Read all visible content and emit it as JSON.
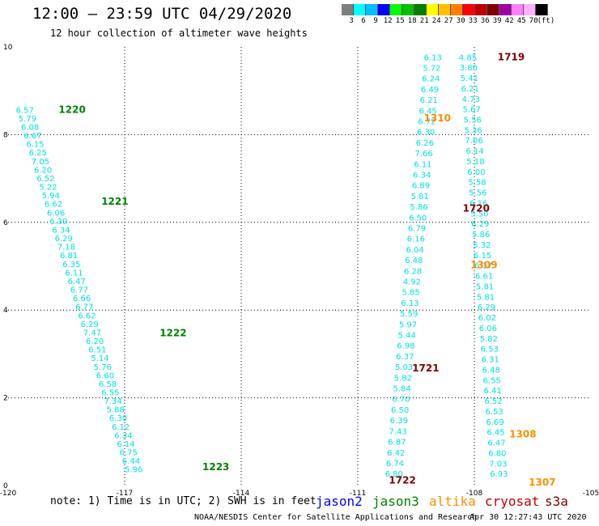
{
  "header": {
    "title": "12:00 — 23:59 UTC 04/29/2020",
    "subtitle": "12 hour collection of altimeter wave heights"
  },
  "legend": {
    "colors": [
      "#7f7f7f",
      "#00ffff",
      "#00bfff",
      "#0000ff",
      "#00ff00",
      "#00c000",
      "#008000",
      "#ffff00",
      "#ffc000",
      "#ff8000",
      "#ff0000",
      "#c00000",
      "#800000",
      "#a000a0",
      "#ff80ff",
      "#ffb0ff",
      "#000000"
    ],
    "labels": [
      "3",
      "6",
      "9",
      "12",
      "15",
      "18",
      "21",
      "24",
      "27",
      "30",
      "33",
      "36",
      "39",
      "42",
      "45",
      "70",
      "(ft)"
    ]
  },
  "chart_data": {
    "type": "scatter",
    "xlim": [
      -120,
      -105
    ],
    "ylim": [
      0,
      10
    ],
    "x_ticks": [
      "-120",
      "-117",
      "-114",
      "-111",
      "-108",
      "-105"
    ],
    "y_ticks": [
      "0",
      "2",
      "4",
      "6",
      "8",
      "10"
    ],
    "grid": true,
    "tracks": [
      {
        "id": "west",
        "color": "#00e0e0",
        "x0": -119.8,
        "y0": 8.5,
        "x1": -117.0,
        "y1": 0.3,
        "values": [
          "6.57",
          "5.79",
          "6.08",
          "6.67",
          "6.15",
          "6.25",
          "7.05",
          "6.20",
          "6.52",
          "5.22",
          "5.94",
          "6.62",
          "6.06",
          "6.39",
          "6.34",
          "6.29",
          "7.18",
          "6.81",
          "6.35",
          "6.11",
          "6.47",
          "6.77",
          "6.66",
          "6.77",
          "6.62",
          "6.29",
          "7.47",
          "6.20",
          "6.51",
          "5.14",
          "5.76",
          "6.60",
          "6.58",
          "6.55",
          "7.34",
          "5.88",
          "6.30",
          "6.12",
          "6.34",
          "6.14",
          "6.75",
          "6.44",
          "5.96"
        ]
      },
      {
        "id": "mid",
        "color": "#00e0e0",
        "x0": -109.3,
        "y0": 9.7,
        "x1": -110.3,
        "y1": 0.2,
        "values": [
          "6.13",
          "5.72",
          "6.24",
          "6.49",
          "6.21",
          "6.45",
          "6.72",
          "6.30",
          "6.26",
          "7.66",
          "6.11",
          "6.34",
          "6.89",
          "5.81",
          "5.86",
          "6.50",
          "6.79",
          "6.16",
          "6.04",
          "6.48",
          "6.28",
          "4.92",
          "5.85",
          "6.13",
          "5.59",
          "5.97",
          "5.44",
          "6.98",
          "6.37",
          "5.03",
          "5.82",
          "5.84",
          "6.70",
          "6.50",
          "6.39",
          "7.43",
          "6.87",
          "6.42",
          "6.74",
          "6.80"
        ]
      },
      {
        "id": "east",
        "color": "#00e0e0",
        "x0": -108.4,
        "y0": 9.7,
        "x1": -107.6,
        "y1": 0.2,
        "values": [
          "4.85",
          "3.80",
          "5.41",
          "6.21",
          "4.73",
          "5.67",
          "5.56",
          "5.36",
          "7.06",
          "6.14",
          "5.18",
          "6.00",
          "5.58",
          "5.56",
          "6.16",
          "5.50",
          "6.29",
          "5.86",
          "5.32",
          "6.15",
          "6.17",
          "6.61",
          "5.81",
          "5.81",
          "6.29",
          "6.02",
          "6.06",
          "5.82",
          "6.53",
          "6.31",
          "6.48",
          "6.55",
          "6.41",
          "6.52",
          "6.53",
          "6.69",
          "6.45",
          "6.47",
          "6.80",
          "7.03",
          "6.93"
        ]
      }
    ],
    "pass_labels": [
      {
        "text": "1220",
        "x": -118.7,
        "y": 8.5,
        "color": "#008000"
      },
      {
        "text": "1221",
        "x": -117.6,
        "y": 6.4,
        "color": "#008000"
      },
      {
        "text": "1222",
        "x": -116.1,
        "y": 3.4,
        "color": "#008000"
      },
      {
        "text": "1223",
        "x": -115.0,
        "y": 0.35,
        "color": "#008000"
      },
      {
        "text": "1719",
        "x": -107.4,
        "y": 9.7,
        "color": "#800000"
      },
      {
        "text": "1720",
        "x": -108.3,
        "y": 6.25,
        "color": "#800000"
      },
      {
        "text": "1721",
        "x": -109.6,
        "y": 2.6,
        "color": "#800000"
      },
      {
        "text": "1722",
        "x": -110.2,
        "y": 0.05,
        "color": "#800000"
      },
      {
        "text": "1310",
        "x": -109.3,
        "y": 8.3,
        "color": "#ff8c00"
      },
      {
        "text": "1309",
        "x": -108.1,
        "y": 4.95,
        "color": "#ff8c00"
      },
      {
        "text": "1308",
        "x": -107.1,
        "y": 1.1,
        "color": "#ff8c00"
      },
      {
        "text": "1307",
        "x": -106.6,
        "y": 0.0,
        "color": "#ff8c00"
      }
    ]
  },
  "footer": {
    "note": "note: 1) Time is in UTC; 2) SWH is in feet",
    "satellites": [
      {
        "name": "jason2",
        "color": "#0000ff"
      },
      {
        "name": "jason3",
        "color": "#008000"
      },
      {
        "name": "altika",
        "color": "#ff8c00"
      },
      {
        "name": "cryosat",
        "color": "#c00000"
      },
      {
        "name": "s3a",
        "color": "#800000"
      }
    ],
    "credit": "NOAA/NESDIS Center for Satellite Applications and Research",
    "timestamp": "Apr 30 12:27:43 UTC 2020"
  }
}
